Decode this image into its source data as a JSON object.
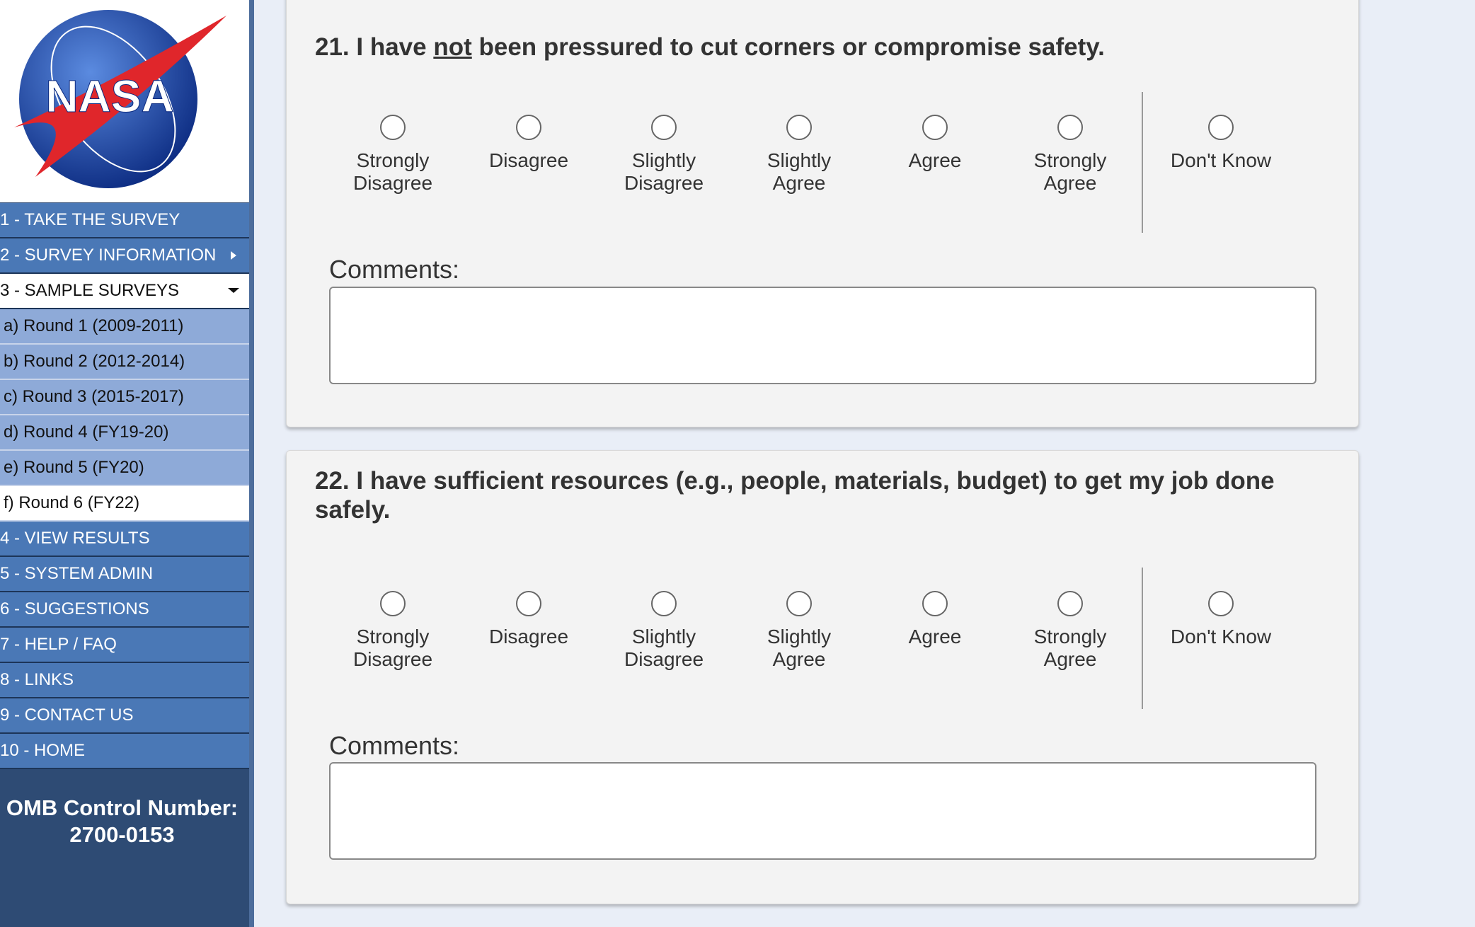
{
  "sidebar": {
    "logo_text": "NASA",
    "nav": [
      "1 - TAKE THE SURVEY",
      "2 - SURVEY INFORMATION",
      "3 - SAMPLE SURVEYS",
      "a) Round 1 (2009-2011)",
      "b) Round 2 (2012-2014)",
      "c) Round 3 (2015-2017)",
      "d) Round 4 (FY19-20)",
      "e) Round 5 (FY20)",
      "f) Round 6 (FY22)",
      "4 - VIEW RESULTS",
      "5 - SYSTEM ADMIN",
      "6 - SUGGESTIONS",
      "7 - HELP / FAQ",
      "8 - LINKS",
      "9 - CONTACT US",
      "10 - HOME"
    ],
    "omb_line1": "OMB Control Number:",
    "omb_line2": "2700-0153"
  },
  "questions": [
    {
      "text_parts": [
        "21. I have ",
        "not",
        " been pressured to cut corners or compromise safety."
      ],
      "options": [
        "Strongly Disagree",
        "Disagree",
        "Slightly Disagree",
        "Slightly Agree",
        "Agree",
        "Strongly Agree"
      ],
      "other_option": "Don't Know",
      "comments_label": "Comments:"
    },
    {
      "text_parts": [
        "22. I have sufficient resources (e.g., people, materials, budget) to get my job done safely."
      ],
      "options": [
        "Strongly Disagree",
        "Disagree",
        "Slightly Disagree",
        "Slightly Agree",
        "Agree",
        "Strongly Agree"
      ],
      "other_option": "Don't Know",
      "comments_label": "Comments:"
    }
  ]
}
